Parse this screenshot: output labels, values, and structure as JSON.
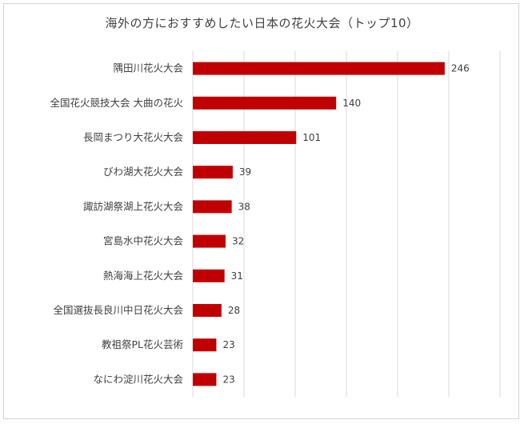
{
  "chart_data": {
    "type": "bar",
    "orientation": "horizontal",
    "title": "海外の方におすすめしたい日本の花火大会（トップ10）",
    "categories": [
      "隅田川花火大会",
      "全国花火競技大会 大曲の花火",
      "長岡まつり大花火大会",
      "びわ湖大花火大会",
      "諏訪湖祭湖上花火大会",
      "宮島水中花火大会",
      "熱海海上花火大会",
      "全国選抜長良川中日花火大会",
      "教祖祭PL花火芸術",
      "なにわ淀川花火大会"
    ],
    "values": [
      246,
      140,
      101,
      39,
      38,
      32,
      31,
      28,
      23,
      23
    ],
    "xlim": [
      0,
      300
    ],
    "grid": true,
    "bar_color": "#c00000"
  }
}
